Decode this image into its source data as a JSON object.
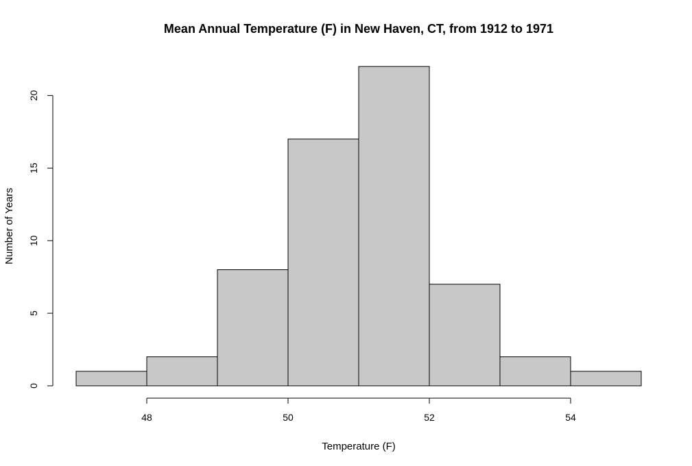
{
  "chart_data": {
    "type": "bar",
    "title": "Mean Annual Temperature (F) in New Haven, CT, from 1912 to 1971",
    "xlabel": "Temperature (F)",
    "ylabel": "Number of Years",
    "bins": [
      {
        "start": 47,
        "end": 48,
        "count": 1
      },
      {
        "start": 48,
        "end": 49,
        "count": 2
      },
      {
        "start": 49,
        "end": 50,
        "count": 8
      },
      {
        "start": 50,
        "end": 51,
        "count": 17
      },
      {
        "start": 51,
        "end": 52,
        "count": 22
      },
      {
        "start": 52,
        "end": 53,
        "count": 7
      },
      {
        "start": 53,
        "end": 54,
        "count": 2
      },
      {
        "start": 54,
        "end": 55,
        "count": 1
      }
    ],
    "xticks": [
      48,
      50,
      52,
      54
    ],
    "yticks": [
      0,
      5,
      10,
      15,
      20
    ],
    "xlim": [
      47,
      55
    ],
    "ylim": [
      0,
      22
    ],
    "grid": false,
    "bar_color": "#c8c8c8",
    "edge_color": "#000000"
  }
}
